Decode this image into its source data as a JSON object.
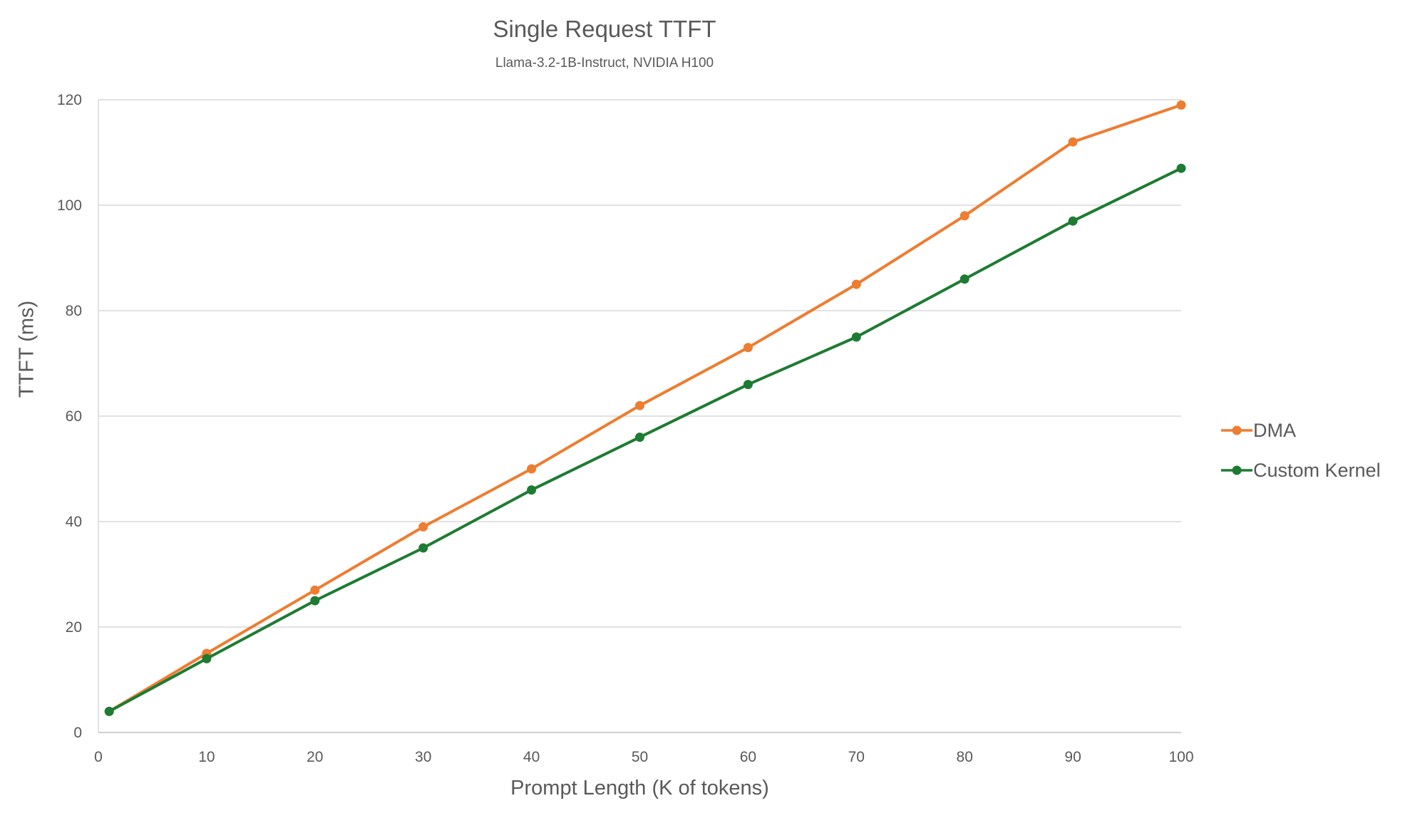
{
  "chart_data": {
    "type": "line",
    "title": "Single Request TTFT",
    "subtitle": "Llama-3.2-1B-Instruct, NVIDIA H100",
    "xlabel": "Prompt Length (K of tokens)",
    "ylabel": "TTFT (ms)",
    "x": [
      1,
      10,
      20,
      30,
      40,
      50,
      60,
      70,
      80,
      90,
      100
    ],
    "series": [
      {
        "name": "DMA",
        "color": "#ED7D31",
        "values": [
          4,
          15,
          27,
          39,
          50,
          62,
          73,
          85,
          98,
          112,
          119
        ]
      },
      {
        "name": "Custom Kernel",
        "color": "#1E7B33",
        "values": [
          4,
          14,
          25,
          35,
          46,
          56,
          66,
          75,
          86,
          97,
          107
        ]
      }
    ],
    "xlim": [
      0,
      100
    ],
    "ylim": [
      0,
      120
    ],
    "x_ticks": [
      0,
      10,
      20,
      30,
      40,
      50,
      60,
      70,
      80,
      90,
      100
    ],
    "y_ticks": [
      0,
      20,
      40,
      60,
      80,
      100,
      120
    ],
    "grid": "horizontal",
    "legend_position": "right",
    "gridline_color": "#D9D9D9",
    "axis_line_color": "#BFBFBF",
    "tick_label_color": "#595959",
    "marker": "circle",
    "line_width": 4,
    "marker_radius": 6.5
  }
}
